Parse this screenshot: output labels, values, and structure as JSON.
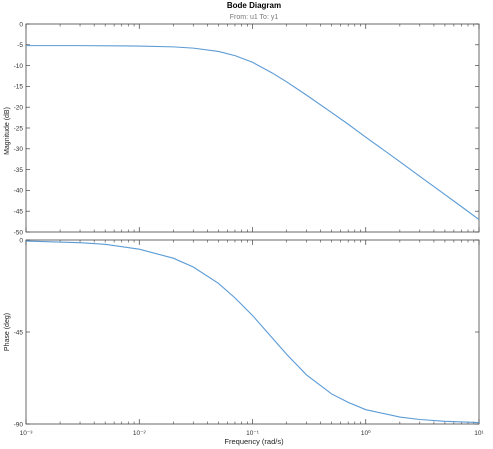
{
  "chart_data": {
    "type": "line",
    "title": "Bode Diagram",
    "subtitle": "From: u1  To: y1",
    "xlabel": "Frequency  (rad/s)",
    "xscale": "log",
    "xlim": [
      0.001,
      10
    ],
    "x_tick_labels": [
      "10⁻³",
      "10⁻²",
      "10⁻¹",
      "10⁰",
      "10¹"
    ],
    "grid": false,
    "subplots": [
      {
        "ylabel": "Magnitude (dB)",
        "ylim": [
          -50,
          0
        ],
        "yticks": [
          0,
          -5,
          -10,
          -15,
          -20,
          -25,
          -30,
          -35,
          -40,
          -45,
          -50
        ],
        "series": [
          {
            "color": "#5b9bd5",
            "x": [
              0.001,
              0.003,
              0.01,
              0.02,
              0.03,
              0.05,
              0.07,
              0.1,
              0.15,
              0.2,
              0.3,
              0.5,
              0.7,
              1,
              2,
              3,
              5,
              7,
              10
            ],
            "values": [
              -5.2,
              -5.2,
              -5.3,
              -5.5,
              -5.8,
              -6.6,
              -7.6,
              -9.2,
              -11.8,
              -13.9,
              -17.1,
              -21.3,
              -24.1,
              -27.2,
              -33.1,
              -36.6,
              -41.0,
              -43.9,
              -47.0
            ]
          }
        ]
      },
      {
        "ylabel": "Phase (deg)",
        "ylim": [
          -90,
          0
        ],
        "yticks": [
          0,
          -45,
          -90
        ],
        "series": [
          {
            "color": "#5b9bd5",
            "x": [
              0.001,
              0.003,
              0.005,
              0.01,
              0.02,
              0.03,
              0.05,
              0.07,
              0.1,
              0.15,
              0.2,
              0.3,
              0.5,
              0.7,
              1,
              2,
              3,
              5,
              10
            ],
            "values": [
              -0.5,
              -1.3,
              -2.1,
              -4.5,
              -8.9,
              -13.2,
              -21.2,
              -28.3,
              -36.9,
              -48.0,
              -55.9,
              -66.0,
              -75.3,
              -79.4,
              -83.0,
              -86.6,
              -87.8,
              -88.7,
              -89.3
            ]
          }
        ]
      }
    ]
  }
}
